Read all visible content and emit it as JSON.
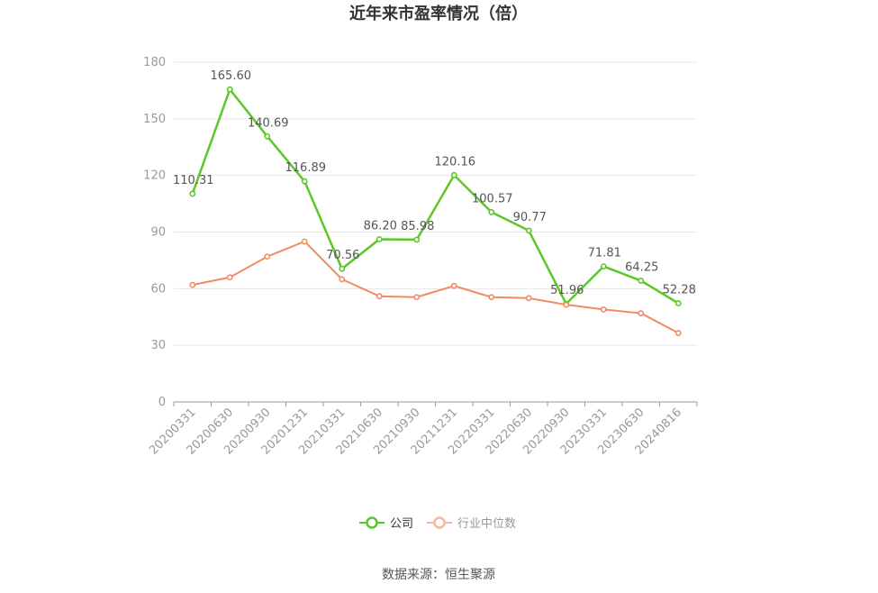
{
  "title": "近年来市盈率情况（倍）",
  "source": "数据来源：恒生聚源",
  "colors": {
    "company": "#5cc827",
    "industry": "#f28b61",
    "industry_legend": "#f6b8a0",
    "grid": "#e6e6e6",
    "axis": "#999999"
  },
  "legend": {
    "company": "公司",
    "industry": "行业中位数"
  },
  "chart_data": {
    "type": "line",
    "title": "近年来市盈率情况（倍）",
    "categories": [
      "20200331",
      "20200630",
      "20200930",
      "20201231",
      "20210331",
      "20210630",
      "20210930",
      "20211231",
      "20220331",
      "20220630",
      "20220930",
      "20230331",
      "20230630",
      "20240816"
    ],
    "y_ticks": [
      "0",
      "30",
      "60",
      "90",
      "120",
      "150",
      "180"
    ],
    "ylim": [
      0,
      180
    ],
    "grid": true,
    "legend_position": "bottom",
    "series": [
      {
        "name": "公司",
        "values": [
          110.31,
          165.6,
          140.69,
          116.89,
          70.56,
          86.2,
          85.98,
          120.16,
          100.57,
          90.77,
          51.96,
          71.81,
          64.25,
          52.28
        ],
        "labels": [
          "110.31",
          "165.60",
          "140.69",
          "116.89",
          "70.56",
          "86.20",
          "85.98",
          "120.16",
          "100.57",
          "90.77",
          "51.96",
          "71.81",
          "64.25",
          "52.28"
        ]
      },
      {
        "name": "行业中位数",
        "values": [
          62.0,
          66.0,
          77.0,
          85.0,
          65.0,
          56.0,
          55.5,
          61.5,
          55.5,
          55.0,
          51.5,
          49.0,
          47.0,
          36.5
        ]
      }
    ]
  }
}
